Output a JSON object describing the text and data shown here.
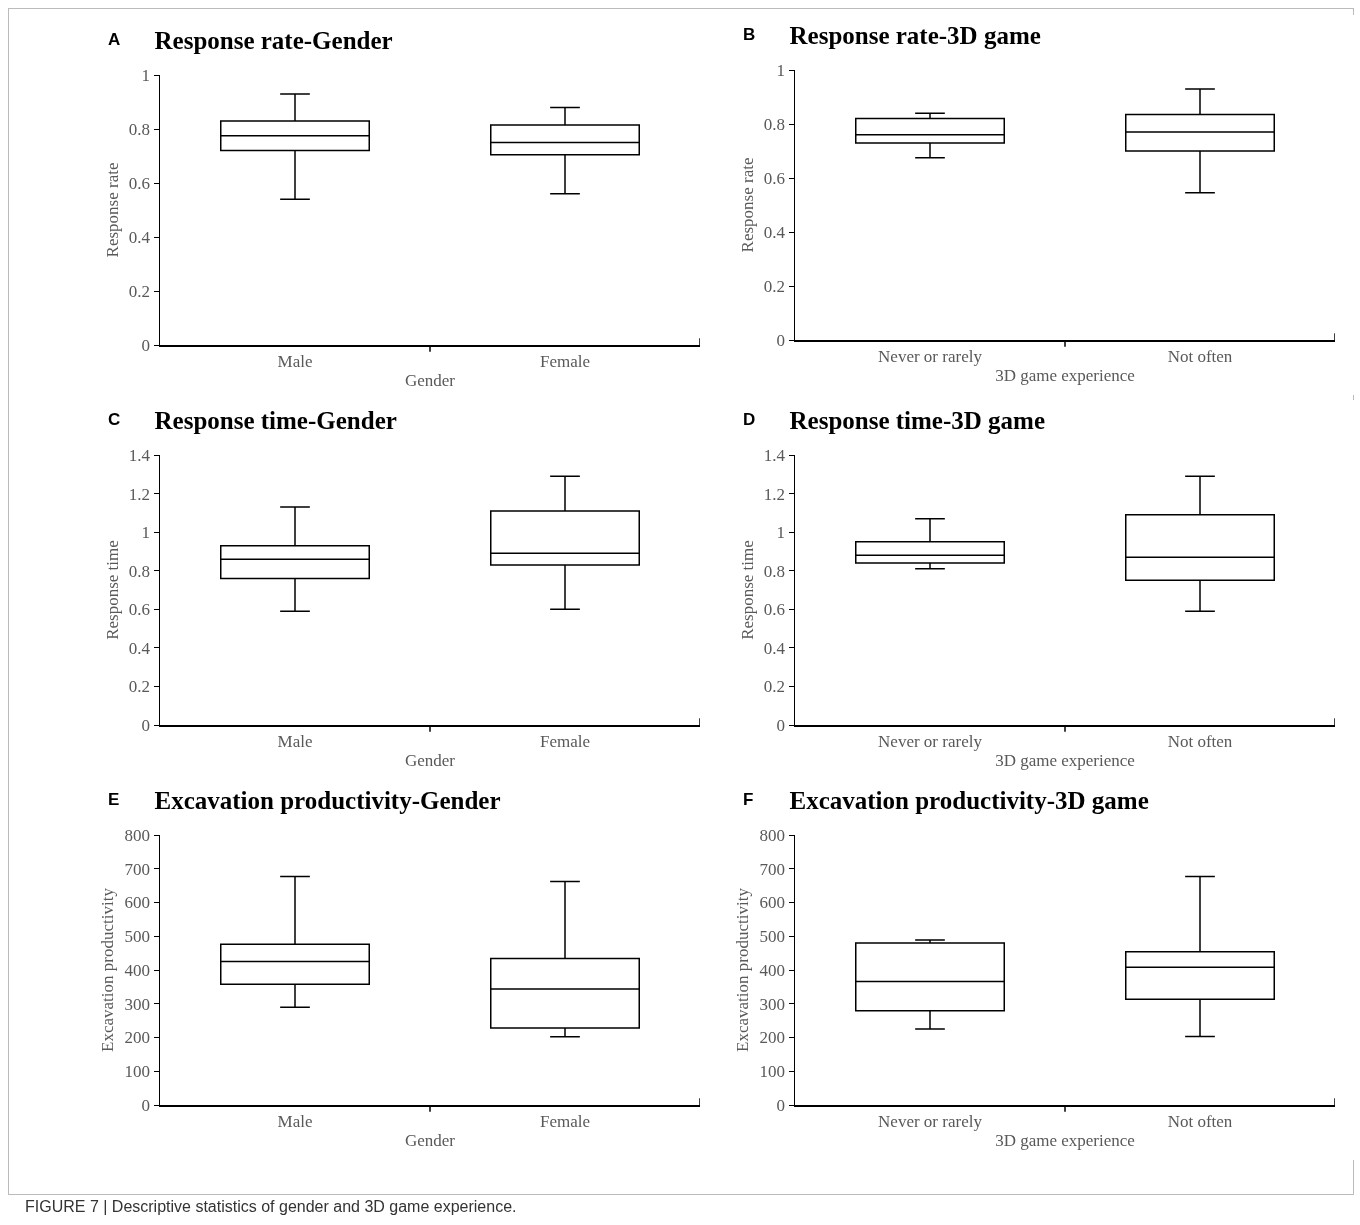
{
  "chart_data": [
    {
      "type": "box",
      "title": "Response rate-Gender",
      "xlabel": "Gender",
      "ylabel": "Response rate",
      "categories": [
        "Male",
        "Female"
      ],
      "ylim": [
        0,
        1
      ],
      "yticks": [
        0,
        0.2,
        0.4,
        0.6,
        0.8,
        1
      ],
      "annotations": [
        "A"
      ],
      "series": [
        {
          "color": "#000000",
          "boxes": [
            {
              "low": 0.54,
              "q1": 0.72,
              "median": 0.775,
              "q3": 0.83,
              "high": 0.93
            },
            {
              "low": 0.56,
              "q1": 0.705,
              "median": 0.75,
              "q3": 0.815,
              "high": 0.88
            }
          ]
        }
      ]
    },
    {
      "type": "box",
      "title": "Response rate-3D game",
      "xlabel": "3D game experience",
      "ylabel": "Response rate",
      "categories": [
        "Never or rarely",
        "Not often"
      ],
      "ylim": [
        0,
        1
      ],
      "yticks": [
        0,
        0.2,
        0.4,
        0.6,
        0.8,
        1
      ],
      "annotations": [
        "B"
      ],
      "series": [
        {
          "color": "#000000",
          "boxes": [
            {
              "low": 0.675,
              "q1": 0.73,
              "median": 0.76,
              "q3": 0.82,
              "high": 0.84
            },
            {
              "low": 0.545,
              "q1": 0.7,
              "median": 0.77,
              "q3": 0.835,
              "high": 0.93
            }
          ]
        }
      ]
    },
    {
      "type": "box",
      "title": "Response time-Gender",
      "xlabel": "Gender",
      "ylabel": "Response time",
      "categories": [
        "Male",
        "Female"
      ],
      "ylim": [
        0,
        1.4
      ],
      "yticks": [
        0,
        0.2,
        0.4,
        0.6,
        0.8,
        1,
        1.2,
        1.4
      ],
      "annotations": [
        "C"
      ],
      "series": [
        {
          "color": "#000000",
          "boxes": [
            {
              "low": 0.59,
              "q1": 0.76,
              "median": 0.86,
              "q3": 0.93,
              "high": 1.13
            },
            {
              "low": 0.6,
              "q1": 0.83,
              "median": 0.89,
              "q3": 1.11,
              "high": 1.29
            }
          ]
        }
      ]
    },
    {
      "type": "box",
      "title": "Response time-3D game",
      "xlabel": "3D game experience",
      "ylabel": "Response time",
      "categories": [
        "Never or rarely",
        "Not often"
      ],
      "ylim": [
        0,
        1.4
      ],
      "yticks": [
        0,
        0.2,
        0.4,
        0.6,
        0.8,
        1,
        1.2,
        1.4
      ],
      "annotations": [
        "D"
      ],
      "series": [
        {
          "color": "#000000",
          "boxes": [
            {
              "low": 0.81,
              "q1": 0.84,
              "median": 0.88,
              "q3": 0.95,
              "high": 1.07
            },
            {
              "low": 0.59,
              "q1": 0.75,
              "median": 0.87,
              "q3": 1.09,
              "high": 1.29
            }
          ]
        }
      ]
    },
    {
      "type": "box",
      "title": "Excavation productivity-Gender",
      "xlabel": "Gender",
      "ylabel": "Excavation productivity",
      "categories": [
        "Male",
        "Female"
      ],
      "ylim": [
        0,
        800
      ],
      "yticks": [
        0,
        100,
        200,
        300,
        400,
        500,
        600,
        700,
        800
      ],
      "annotations": [
        "E"
      ],
      "series": [
        {
          "color": "#000000",
          "boxes": [
            {
              "low": 290,
              "q1": 358,
              "median": 425,
              "q3": 476,
              "high": 677
            },
            {
              "low": 202,
              "q1": 228,
              "median": 344,
              "q3": 434,
              "high": 662
            }
          ]
        }
      ]
    },
    {
      "type": "box",
      "title": "Excavation productivity-3D game",
      "xlabel": "3D game experience",
      "ylabel": "Excavation productivity",
      "categories": [
        "Never or rarely",
        "Not often"
      ],
      "ylim": [
        0,
        800
      ],
      "yticks": [
        0,
        100,
        200,
        300,
        400,
        500,
        600,
        700,
        800
      ],
      "annotations": [
        "F",
        "FIGURE 7 | Descriptive statistics of gender and 3D game experience."
      ],
      "series": [
        {
          "color": "#000000",
          "boxes": [
            {
              "low": 225,
              "q1": 279,
              "median": 366,
              "q3": 480,
              "high": 489
            },
            {
              "low": 203,
              "q1": 313,
              "median": 408,
              "q3": 454,
              "high": 677
            }
          ]
        }
      ]
    }
  ]
}
